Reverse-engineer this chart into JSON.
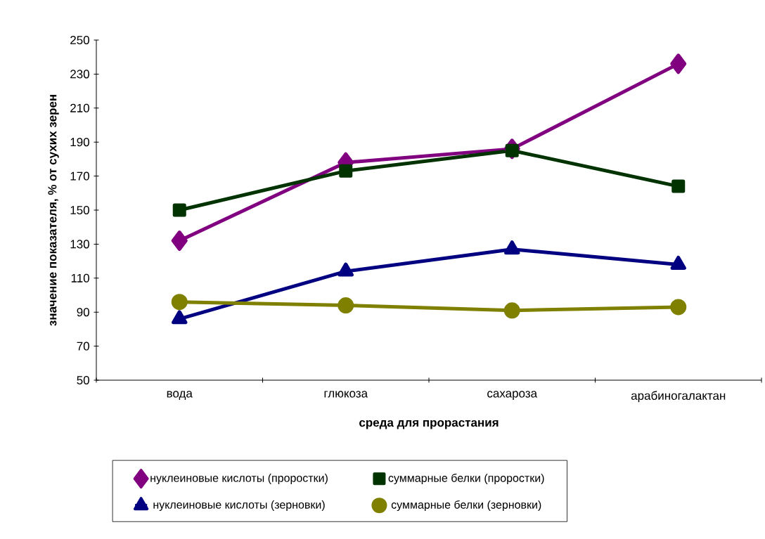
{
  "chart_data": {
    "type": "line",
    "xlabel": "среда для прорастания",
    "ylabel": "значение показателя, % от сухих зерен",
    "categories": [
      "вода",
      "глюкоза",
      "сахароза",
      "арабиногалактан"
    ],
    "ylim": [
      50,
      250
    ],
    "yticks": [
      50,
      70,
      90,
      110,
      130,
      150,
      170,
      190,
      210,
      230,
      250
    ],
    "legend": "bottom",
    "line_style": "solid",
    "series": [
      {
        "name": "нуклеиновые кислоты (проростки)",
        "color": "#800080",
        "marker": "diamond",
        "values": [
          132,
          178,
          186,
          236
        ]
      },
      {
        "name": "суммарные белки (проростки)",
        "color": "#003300",
        "marker": "square",
        "values": [
          150,
          173,
          185,
          164
        ]
      },
      {
        "name": "нуклеиновые кислоты (зерновки)",
        "color": "#000080",
        "marker": "triangle",
        "values": [
          86,
          114,
          127,
          118
        ]
      },
      {
        "name": "суммарные белки (зерновки)",
        "color": "#808000",
        "marker": "circle",
        "values": [
          96,
          94,
          91,
          93
        ]
      }
    ]
  }
}
